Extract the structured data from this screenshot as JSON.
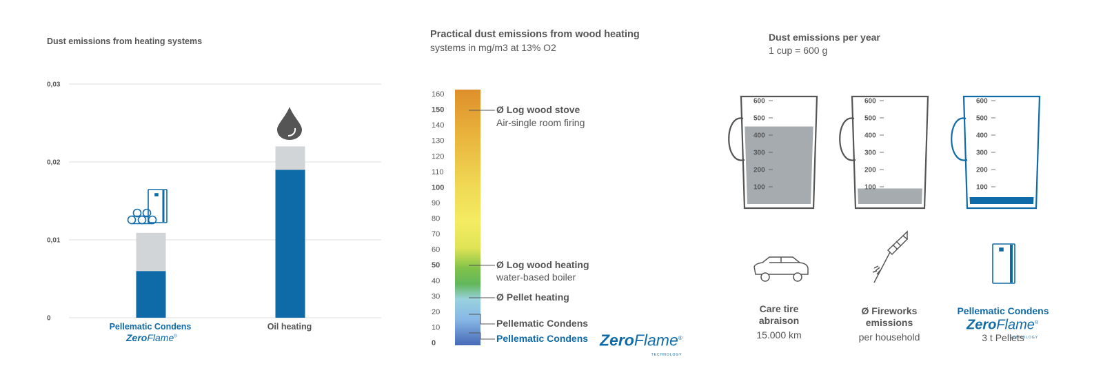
{
  "colors": {
    "blue": "#0f6aa8",
    "grey": "#d1d5d8",
    "dark": "#555555",
    "cup_fill": "#a6abaf"
  },
  "left": {
    "title": "Dust emissions from heating systems",
    "yticks": [
      "0",
      "0,01",
      "0,02",
      "0,03"
    ],
    "drop_icon": "drop-icon",
    "pellet_icon": "pellet-boiler-icon"
  },
  "mid": {
    "title": "Practical dust emissions from wood heating",
    "subtitle": "systems in mg/m3 at 13% O2",
    "ticks": [
      "0",
      "10",
      "20",
      "30",
      "40",
      "50",
      "60",
      "70",
      "80",
      "90",
      "100",
      "110",
      "120",
      "130",
      "140",
      "150",
      "160"
    ],
    "labels": {
      "log_stove": "Ø Log wood stove",
      "log_stove_sub": "Air-single room firing",
      "log_heating": "Ø Log wood heating",
      "log_heating_sub": "water-based boiler",
      "pellet": "Ø Pellet heating",
      "pc": "Pellematic Condens",
      "pc_zf": "Pellematic Condens"
    }
  },
  "right": {
    "title": "Dust emissions per year",
    "subtitle": "1 cup = 600 g",
    "cup_ticks": [
      "100",
      "200",
      "300",
      "400",
      "500",
      "600"
    ],
    "items": [
      {
        "line1": "Care tire",
        "line2": "abraison",
        "value": "15.000 km"
      },
      {
        "line1": "Ø Fireworks",
        "line2": "emissions",
        "value": "per household"
      },
      {
        "line1": "Pellematic Condens",
        "value": "3 t Pellets"
      }
    ]
  },
  "zeroflame": {
    "zero": "Zero",
    "flame": "Flame",
    "tech": "TECHNOLOGY",
    "reg": "®"
  },
  "chart_data": [
    {
      "type": "bar",
      "title": "Dust emissions from heating systems",
      "categories": [
        "Pellematic Condens",
        "Oil heating"
      ],
      "series": [
        {
          "values": [
            0.006,
            0.019
          ]
        },
        {
          "values": [
            0.0049,
            0.003
          ]
        }
      ],
      "stacked": true,
      "ylim": [
        0,
        0.03
      ],
      "grid": true
    },
    {
      "type": "bar",
      "title": "Practical dust emissions from wood heating",
      "subtitle": "systems in mg/m3 at 13% O2",
      "categories": [
        "Ø Log wood stove",
        "Ø Log wood heating",
        "Ø Pellet heating",
        "Pellematic Condens",
        "Pellematic Condens ZeroFlame"
      ],
      "values": [
        150,
        50,
        30,
        15,
        5
      ],
      "ylim": [
        0,
        160
      ]
    },
    {
      "type": "bar",
      "title": "Dust emissions per year",
      "subtitle": "1 cup = 600 g",
      "categories": [
        "Care tire abraison 15.000 km",
        "Ø Fireworks emissions per household",
        "Pellematic Condens ZeroFlame 3 t Pellets"
      ],
      "values": [
        450,
        90,
        40
      ],
      "ylim": [
        0,
        600
      ]
    }
  ]
}
